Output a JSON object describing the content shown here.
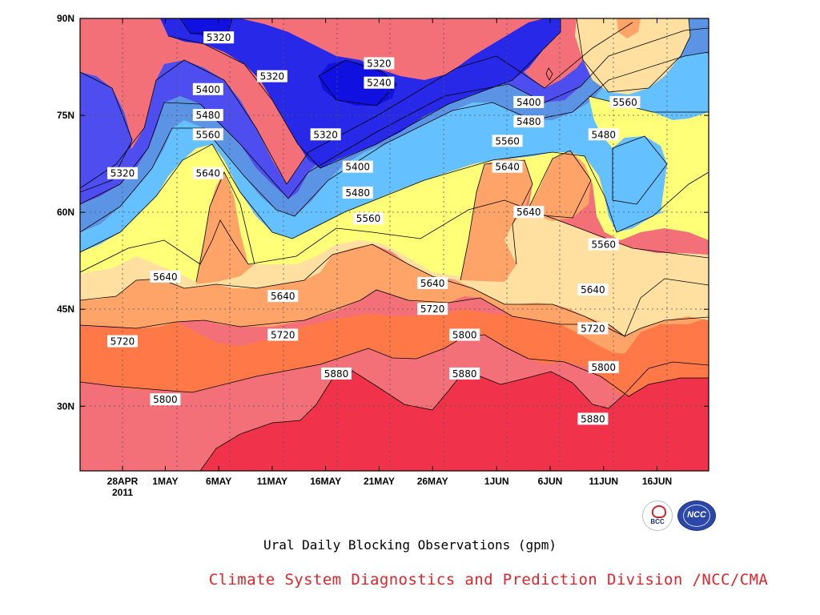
{
  "caption": "Ural Daily Blocking Observations (gpm)",
  "credit": "Climate System Diagnostics and Prediction Division /NCC/CMA",
  "logos": {
    "left": "BCC",
    "right": "NCC"
  },
  "chart_data": {
    "type": "heatmap",
    "subtype": "filled-contour",
    "title": "",
    "xlabel": "",
    "ylabel": "",
    "units": "gpm",
    "x_ticks": [
      "28APR",
      "1MAY",
      "6MAY",
      "11MAY",
      "16MAY",
      "21MAY",
      "26MAY",
      "1JUN",
      "6JUN",
      "11JUN",
      "16JUN"
    ],
    "x_year_label": "2011",
    "y_ticks": [
      "30N",
      "45N",
      "60N",
      "75N",
      "90N"
    ],
    "ylim": [
      20,
      90
    ],
    "grid": "dotted",
    "contour_levels": [
      5240,
      5320,
      5400,
      5480,
      5560,
      5640,
      5720,
      5800,
      5880
    ],
    "band_colors": {
      "below_5240": "#1010e0",
      "5240-5320": "#2828e8",
      "5320-5400": "#4e4ef0",
      "5400-5480": "#5b94e4",
      "5480-5560": "#64c0ff",
      "5560-5640": "#ffff78",
      "5640-5720": "#ffe0a0",
      "5720-5800": "#ffa468",
      "5800-5880": "#ff7848",
      "5880-5960": "#f47078",
      "above_5960": "#f0324a"
    },
    "contour_labels": [
      {
        "value": "5320",
        "date": "6MAY",
        "lat": 87
      },
      {
        "value": "5320",
        "date": "21MAY",
        "lat": 83
      },
      {
        "value": "5240",
        "date": "21MAY",
        "lat": 80
      },
      {
        "value": "5320",
        "date": "11MAY",
        "lat": 81
      },
      {
        "value": "5400",
        "date": "5MAY",
        "lat": 79
      },
      {
        "value": "5480",
        "date": "5MAY",
        "lat": 75
      },
      {
        "value": "5560",
        "date": "5MAY",
        "lat": 72
      },
      {
        "value": "5320",
        "date": "28APR",
        "lat": 66
      },
      {
        "value": "5640",
        "date": "5MAY",
        "lat": 66
      },
      {
        "value": "5320",
        "date": "16MAY",
        "lat": 72
      },
      {
        "value": "5400",
        "date": "19MAY",
        "lat": 67
      },
      {
        "value": "5480",
        "date": "19MAY",
        "lat": 63
      },
      {
        "value": "5560",
        "date": "20MAY",
        "lat": 59
      },
      {
        "value": "5400",
        "date": "4JUN",
        "lat": 77
      },
      {
        "value": "5480",
        "date": "4JUN",
        "lat": 74
      },
      {
        "value": "5560",
        "date": "2JUN",
        "lat": 71
      },
      {
        "value": "5640",
        "date": "2JUN",
        "lat": 67
      },
      {
        "value": "5640",
        "date": "4JUN",
        "lat": 60
      },
      {
        "value": "5560",
        "date": "13JUN",
        "lat": 77
      },
      {
        "value": "5480",
        "date": "11JUN",
        "lat": 72
      },
      {
        "value": "5560",
        "date": "11JUN",
        "lat": 55
      },
      {
        "value": "5640",
        "date": "10JUN",
        "lat": 48
      },
      {
        "value": "5640",
        "date": "1MAY",
        "lat": 50
      },
      {
        "value": "5640",
        "date": "12MAY",
        "lat": 47
      },
      {
        "value": "5640",
        "date": "26MAY",
        "lat": 49
      },
      {
        "value": "5720",
        "date": "26MAY",
        "lat": 45
      },
      {
        "value": "5720",
        "date": "28APR",
        "lat": 40
      },
      {
        "value": "5720",
        "date": "12MAY",
        "lat": 41
      },
      {
        "value": "5800",
        "date": "29MAY",
        "lat": 41
      },
      {
        "value": "5720",
        "date": "10JUN",
        "lat": 42
      },
      {
        "value": "5800",
        "date": "1MAY",
        "lat": 31
      },
      {
        "value": "5880",
        "date": "17MAY",
        "lat": 35
      },
      {
        "value": "5880",
        "date": "29MAY",
        "lat": 35
      },
      {
        "value": "5800",
        "date": "11JUN",
        "lat": 36
      },
      {
        "value": "5880",
        "date": "10JUN",
        "lat": 28
      }
    ]
  }
}
